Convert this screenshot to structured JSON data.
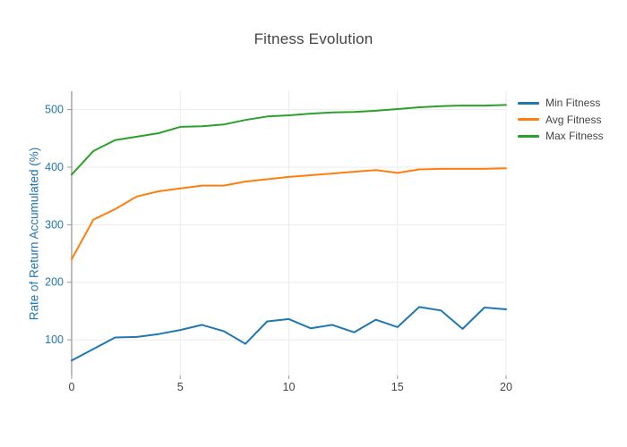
{
  "chart_data": {
    "type": "line",
    "title": "Fitness Evolution",
    "xlabel": "",
    "ylabel": "Rate of Return Accumulated (%)",
    "x": [
      0,
      1,
      2,
      3,
      4,
      5,
      6,
      7,
      8,
      9,
      10,
      11,
      12,
      13,
      14,
      15,
      16,
      17,
      18,
      19,
      20
    ],
    "series": [
      {
        "name": "Min Fitness",
        "color": "#1f77b4",
        "values": [
          64,
          84,
          104,
          105,
          110,
          117,
          126,
          115,
          93,
          132,
          136,
          120,
          126,
          113,
          135,
          122,
          157,
          151,
          119,
          156,
          153
        ]
      },
      {
        "name": "Avg Fitness",
        "color": "#ff7f0e",
        "values": [
          240,
          309,
          327,
          349,
          358,
          363,
          368,
          368,
          375,
          379,
          383,
          386,
          389,
          392,
          395,
          390,
          396,
          397,
          397,
          397,
          398
        ]
      },
      {
        "name": "Max Fitness",
        "color": "#2ca02c",
        "values": [
          387,
          428,
          447,
          453,
          459,
          470,
          471,
          474,
          482,
          488,
          490,
          493,
          495,
          496,
          498,
          501,
          504,
          506,
          507,
          507,
          508
        ]
      }
    ],
    "xlim": [
      0,
      20
    ],
    "ylim": [
      38,
      532
    ],
    "xticks": [
      0,
      5,
      10,
      15,
      20
    ],
    "yticks": [
      100,
      200,
      300,
      400,
      500
    ],
    "grid": true,
    "legend_position": "right"
  },
  "colors": {
    "grid": "#ebebeb",
    "axis_line": "#999999",
    "axis_text_blue": "#1f77b4",
    "tick_text_gray": "#444444",
    "title_text": "#444444"
  }
}
